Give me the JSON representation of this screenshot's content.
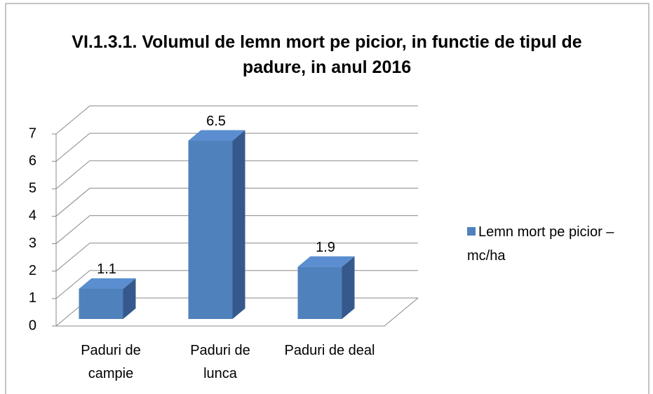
{
  "chart_data": {
    "type": "bar3d",
    "title": "VI.1.3.1. Volumul de lemn mort pe picior, in functie de tipul de padure, in anul 2016",
    "categories": [
      "Paduri de campie",
      "Paduri de lunca",
      "Paduri de deal"
    ],
    "series": [
      {
        "name": "Lemn mort pe picior – mc/ha",
        "color": "#4f81bd",
        "values": [
          1.1,
          6.5,
          1.9
        ]
      }
    ],
    "ylim": [
      0,
      7
    ],
    "yticks": [
      0,
      1,
      2,
      3,
      4,
      5,
      6,
      7
    ],
    "grid": true,
    "legend": "right"
  }
}
